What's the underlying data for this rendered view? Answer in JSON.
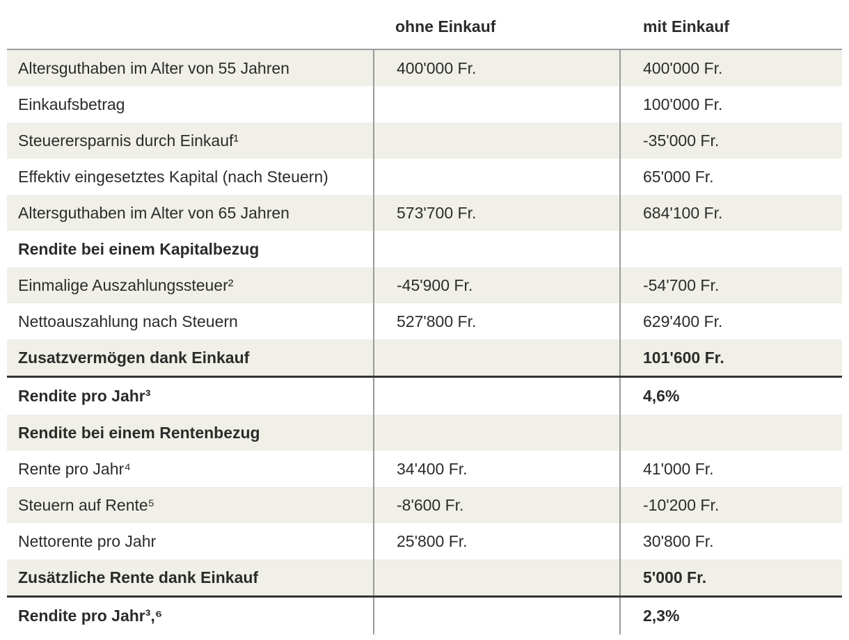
{
  "header": {
    "col1": "",
    "col2": "ohne Einkauf",
    "col3": "mit Einkauf"
  },
  "rows": [
    {
      "label": "Altersguthaben im Alter von 55 Jahren",
      "ohne": "400'000 Fr.",
      "mit": "400'000 Fr."
    },
    {
      "label": "Einkaufsbetrag",
      "ohne": "",
      "mit": "100'000 Fr."
    },
    {
      "label": "Steuerersparnis durch Einkauf¹",
      "ohne": "",
      "mit": "-35'000 Fr."
    },
    {
      "label": "Effektiv eingesetztes Kapital (nach Steuern)",
      "ohne": "",
      "mit": "65'000 Fr."
    },
    {
      "label": "Altersguthaben im Alter von 65 Jahren",
      "ohne": "573'700 Fr.",
      "mit": "684'100 Fr."
    },
    {
      "label": "Rendite bei einem Kapitalbezug",
      "ohne": "",
      "mit": ""
    },
    {
      "label": "Einmalige Auszahlungssteuer²",
      "ohne": "-45'900 Fr.",
      "mit": "-54'700 Fr."
    },
    {
      "label": "Nettoauszahlung nach Steuern",
      "ohne": "527'800 Fr.",
      "mit": "629'400 Fr."
    },
    {
      "label": "Zusatzvermögen dank Einkauf",
      "ohne": "",
      "mit": "101'600 Fr."
    },
    {
      "label": "Rendite pro Jahr³",
      "ohne": "",
      "mit": "4,6%"
    },
    {
      "label": "Rendite bei einem Rentenbezug",
      "ohne": "",
      "mit": ""
    },
    {
      "label": "Rente pro Jahr⁴",
      "ohne": "34'400 Fr.",
      "mit": "41'000 Fr."
    },
    {
      "label": "Steuern auf Rente⁵",
      "ohne": "-8'600 Fr.",
      "mit": "-10'200 Fr."
    },
    {
      "label": "Nettorente pro Jahr",
      "ohne": "25'800 Fr.",
      "mit": "30'800 Fr."
    },
    {
      "label": "Zusätzliche Rente dank Einkauf",
      "ohne": "",
      "mit": "5'000 Fr."
    },
    {
      "label": "Rendite pro Jahr³,⁶",
      "ohne": "",
      "mit": "2,3%"
    }
  ]
}
